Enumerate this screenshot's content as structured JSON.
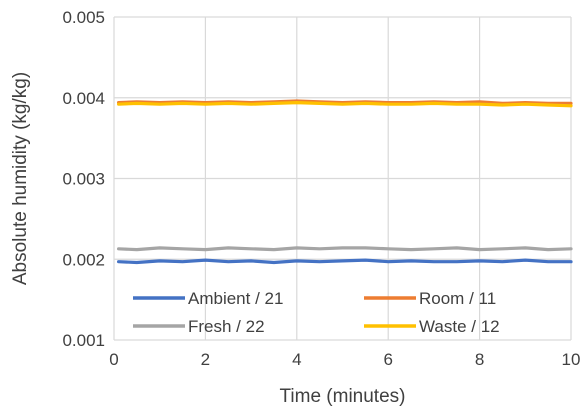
{
  "chart_data": {
    "type": "line",
    "xlabel": "Time (minutes)",
    "ylabel": "Absolute humidity (kg/kg)",
    "xlim": [
      0,
      10
    ],
    "ylim": [
      0.001,
      0.005
    ],
    "x_ticks": [
      0,
      2,
      4,
      6,
      8,
      10
    ],
    "y_ticks": [
      0.001,
      0.002,
      0.003,
      0.004,
      0.005
    ],
    "x_tick_labels": [
      "0",
      "2",
      "4",
      "6",
      "8",
      "10"
    ],
    "y_tick_labels": [
      "0.001",
      "0.002",
      "0.003",
      "0.004",
      "0.005"
    ],
    "grid": true,
    "legend_position": "bottom-inside",
    "series": [
      {
        "name": "Ambient / 21",
        "color": "#4472C4",
        "x": [
          0.1,
          0.5,
          1,
          1.5,
          2,
          2.5,
          3,
          3.5,
          4,
          4.5,
          5,
          5.5,
          6,
          6.5,
          7,
          7.5,
          8,
          8.5,
          9,
          9.5,
          10
        ],
        "y": [
          0.00197,
          0.00196,
          0.00198,
          0.00197,
          0.00199,
          0.00197,
          0.00198,
          0.00196,
          0.00198,
          0.00197,
          0.00198,
          0.00199,
          0.00197,
          0.00198,
          0.00197,
          0.00197,
          0.00198,
          0.00197,
          0.00199,
          0.00197,
          0.00197
        ]
      },
      {
        "name": "Room / 11",
        "color": "#ED7D31",
        "x": [
          0.1,
          0.5,
          1,
          1.5,
          2,
          2.5,
          3,
          3.5,
          4,
          4.5,
          5,
          5.5,
          6,
          6.5,
          7,
          7.5,
          8,
          8.5,
          9,
          9.5,
          10
        ],
        "y": [
          0.00394,
          0.00395,
          0.00394,
          0.00395,
          0.00394,
          0.00395,
          0.00394,
          0.00395,
          0.00396,
          0.00395,
          0.00394,
          0.00395,
          0.00394,
          0.00394,
          0.00395,
          0.00394,
          0.00395,
          0.00393,
          0.00394,
          0.00393,
          0.00393
        ]
      },
      {
        "name": "Fresh / 22",
        "color": "#A5A5A5",
        "x": [
          0.1,
          0.5,
          1,
          1.5,
          2,
          2.5,
          3,
          3.5,
          4,
          4.5,
          5,
          5.5,
          6,
          6.5,
          7,
          7.5,
          8,
          8.5,
          9,
          9.5,
          10
        ],
        "y": [
          0.00213,
          0.00212,
          0.00214,
          0.00213,
          0.00212,
          0.00214,
          0.00213,
          0.00212,
          0.00214,
          0.00213,
          0.00214,
          0.00214,
          0.00213,
          0.00212,
          0.00213,
          0.00214,
          0.00212,
          0.00213,
          0.00214,
          0.00212,
          0.00213
        ]
      },
      {
        "name": "Waste / 12",
        "color": "#FFC000",
        "x": [
          0.1,
          0.5,
          1,
          1.5,
          2,
          2.5,
          3,
          3.5,
          4,
          4.5,
          5,
          5.5,
          6,
          6.5,
          7,
          7.5,
          8,
          8.5,
          9,
          9.5,
          10
        ],
        "y": [
          0.00392,
          0.00393,
          0.00392,
          0.00393,
          0.00392,
          0.00393,
          0.00392,
          0.00393,
          0.00394,
          0.00393,
          0.00392,
          0.00393,
          0.00392,
          0.00392,
          0.00393,
          0.00392,
          0.00392,
          0.00391,
          0.00392,
          0.00391,
          0.0039
        ]
      }
    ]
  }
}
